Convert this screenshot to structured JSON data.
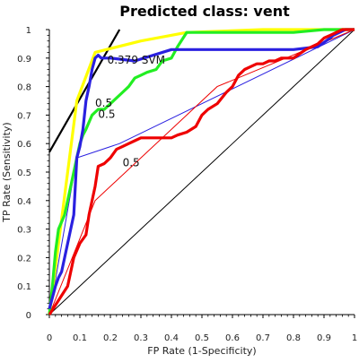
{
  "chart_data": {
    "type": "line",
    "title": "Predicted class: vent",
    "xlabel": "FP Rate (1-Specificity)",
    "ylabel": "TP Rate (Sensitivity)",
    "xlim": [
      0,
      1
    ],
    "ylim": [
      0,
      1
    ],
    "xticks": [
      "0",
      "0.1",
      "0.2",
      "0.3",
      "0.4",
      "0.5",
      "0.6",
      "0.7",
      "0.8",
      "0.9",
      "1"
    ],
    "yticks": [
      "0",
      "0.1",
      "0.2",
      "0.3",
      "0.4",
      "0.5",
      "0.6",
      "0.7",
      "0.8",
      "0.9",
      "1"
    ],
    "grid": false,
    "colors": {
      "diagonal": "#000000",
      "iso_line": "#000000",
      "yellow": "#ffff00",
      "green": "#22ee22",
      "blue": "#2a20e0",
      "red": "#ee0000"
    },
    "reference_lines": [
      {
        "role": "diagonal",
        "x": [
          0,
          1
        ],
        "y": [
          0,
          1
        ]
      },
      {
        "role": "iso_performance",
        "x": [
          0,
          0.23
        ],
        "y": [
          0.57,
          1.0
        ]
      }
    ],
    "series": [
      {
        "color": "yellow",
        "x": [
          0,
          0.03,
          0.06,
          0.09,
          0.15,
          0.3,
          0.45,
          0.7,
          0.9,
          1
        ],
        "y": [
          0,
          0.25,
          0.5,
          0.75,
          0.92,
          0.96,
          0.99,
          1,
          1,
          1
        ]
      },
      {
        "color": "green",
        "x": [
          0,
          0.01,
          0.02,
          0.03,
          0.05,
          0.07,
          0.09,
          0.1,
          0.11,
          0.12,
          0.14,
          0.16,
          0.18,
          0.2,
          0.24,
          0.26,
          0.28,
          0.3,
          0.32,
          0.35,
          0.37,
          0.4,
          0.42,
          0.45,
          0.6,
          0.8,
          0.9,
          1
        ],
        "y": [
          0,
          0.1,
          0.22,
          0.3,
          0.35,
          0.45,
          0.55,
          0.6,
          0.63,
          0.65,
          0.7,
          0.72,
          0.72,
          0.74,
          0.78,
          0.8,
          0.83,
          0.84,
          0.85,
          0.86,
          0.89,
          0.9,
          0.94,
          0.99,
          0.99,
          0.99,
          1,
          1
        ]
      },
      {
        "color": "blue",
        "x": [
          0,
          0.01,
          0.02,
          0.03,
          0.04,
          0.05,
          0.06,
          0.07,
          0.08,
          0.09,
          0.1,
          0.11,
          0.12,
          0.13,
          0.14,
          0.15,
          0.16,
          0.17,
          0.2,
          0.28,
          0.4,
          0.6,
          0.8,
          0.88,
          0.92,
          0.93,
          0.97,
          1
        ],
        "y": [
          0.02,
          0.06,
          0.1,
          0.13,
          0.15,
          0.2,
          0.25,
          0.3,
          0.35,
          0.55,
          0.59,
          0.65,
          0.75,
          0.8,
          0.86,
          0.9,
          0.91,
          0.9,
          0.9,
          0.89,
          0.93,
          0.93,
          0.93,
          0.94,
          0.97,
          0.98,
          1,
          1
        ]
      },
      {
        "color": "red",
        "x": [
          0,
          0.03,
          0.06,
          0.08,
          0.1,
          0.12,
          0.13,
          0.14,
          0.15,
          0.16,
          0.18,
          0.2,
          0.22,
          0.24,
          0.26,
          0.28,
          0.3,
          0.35,
          0.4,
          0.42,
          0.45,
          0.48,
          0.5,
          0.52,
          0.55,
          0.58,
          0.6,
          0.62,
          0.64,
          0.66,
          0.68,
          0.7,
          0.72,
          0.74,
          0.76,
          0.8,
          0.84,
          0.88,
          0.9,
          0.92,
          0.96,
          1
        ],
        "y": [
          0,
          0.05,
          0.1,
          0.2,
          0.25,
          0.28,
          0.35,
          0.4,
          0.45,
          0.52,
          0.53,
          0.55,
          0.58,
          0.59,
          0.6,
          0.61,
          0.62,
          0.62,
          0.62,
          0.63,
          0.64,
          0.66,
          0.7,
          0.72,
          0.74,
          0.78,
          0.8,
          0.84,
          0.86,
          0.87,
          0.88,
          0.88,
          0.89,
          0.89,
          0.9,
          0.9,
          0.93,
          0.95,
          0.97,
          0.98,
          1,
          1
        ]
      }
    ],
    "thin_lines": [
      {
        "color": "blue",
        "x": [
          0,
          0.09,
          0.23,
          1
        ],
        "y": [
          0,
          0.55,
          0.6,
          1
        ]
      },
      {
        "color": "red",
        "x": [
          0,
          0.15,
          0.55,
          1
        ],
        "y": [
          0,
          0.4,
          0.8,
          1
        ]
      }
    ],
    "annotations": [
      {
        "text": "0.379 SVM",
        "x": 0.19,
        "y": 0.88
      },
      {
        "text": "0.5",
        "x": 0.15,
        "y": 0.73
      },
      {
        "text": "0.5",
        "x": 0.16,
        "y": 0.69
      },
      {
        "text": "0.5",
        "x": 0.24,
        "y": 0.52
      }
    ]
  }
}
